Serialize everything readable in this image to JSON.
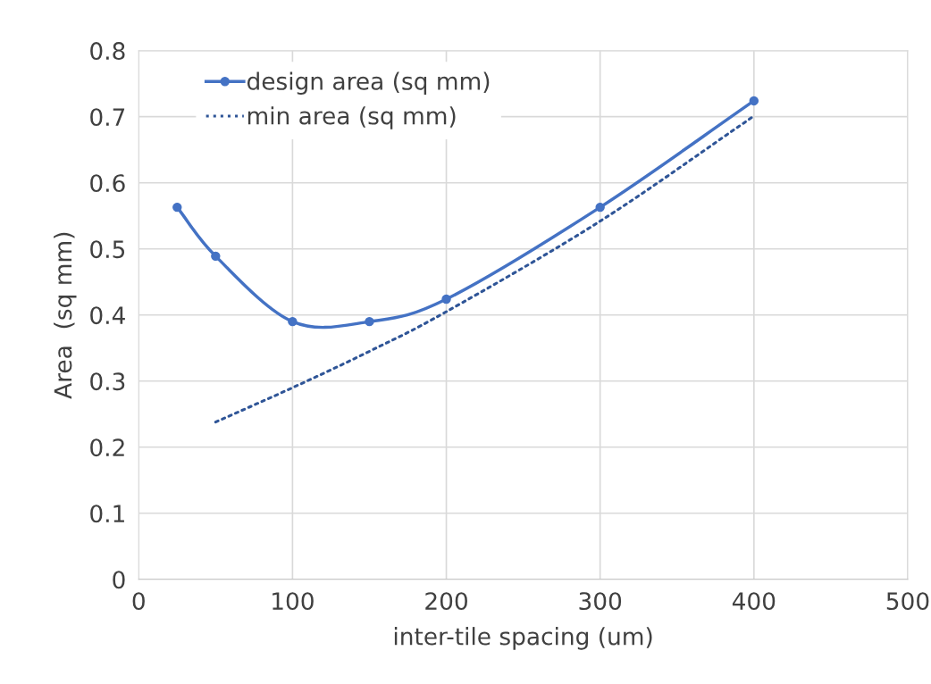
{
  "chart_data": {
    "type": "line",
    "xlabel": "inter-tile spacing (um)",
    "ylabel": "Area  (sq mm)",
    "series": [
      {
        "name": "design area (sq mm)",
        "color": "#4472c4",
        "x": [
          25,
          50,
          100,
          150,
          200,
          300,
          400
        ],
        "values": [
          0.563,
          0.489,
          0.39,
          0.39,
          0.424,
          0.563,
          0.724
        ],
        "marker": "circle",
        "line_style": "solid"
      },
      {
        "name": "min area (sq mm)",
        "color": "#2f5597",
        "x": [
          50,
          100,
          150,
          200,
          300,
          400
        ],
        "values": [
          0.238,
          0.29,
          0.345,
          0.405,
          0.542,
          0.701
        ],
        "marker": "none",
        "line_style": "dotted"
      }
    ],
    "xlim": [
      0,
      500
    ],
    "xticks": [
      0,
      100,
      200,
      300,
      400,
      500
    ],
    "ylim": [
      0,
      0.8
    ],
    "yticks": [
      0,
      0.1,
      0.2,
      0.3,
      0.4,
      0.5,
      0.6,
      0.7,
      0.8
    ],
    "grid": true,
    "legend": "top left"
  }
}
